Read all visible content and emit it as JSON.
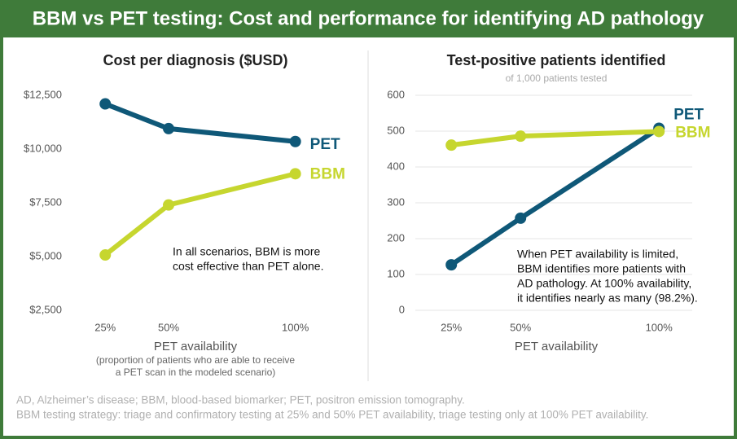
{
  "title": "BBM vs PET testing: Cost and performance for identifying AD pathology",
  "footnotes": [
    "AD, Alzheimer’s disease; BBM, blood-based biomarker; PET, positron emission tomography.",
    "BBM testing strategy: triage and confirmatory testing at 25% and 50% PET availability, triage testing only at 100% PET availability."
  ],
  "chart_data": [
    {
      "type": "line",
      "title": "Cost per diagnosis ($USD)",
      "xlabel": "PET availability",
      "xlabel_note": [
        "(proportion of patients who are able to receive",
        "a PET scan in the modeled scenario)"
      ],
      "x": [
        25,
        50,
        100
      ],
      "xlim": [
        14,
        112
      ],
      "xticks": [
        {
          "value": 25,
          "label": "25%"
        },
        {
          "value": 50,
          "label": "50%"
        },
        {
          "value": 100,
          "label": "100%"
        }
      ],
      "ylim": [
        2500,
        12500
      ],
      "yticks": [
        {
          "value": 2500,
          "label": "$2,500"
        },
        {
          "value": 5000,
          "label": "$5,000"
        },
        {
          "value": 7500,
          "label": "$7,500"
        },
        {
          "value": 10000,
          "label": "$10,000"
        },
        {
          "value": 12500,
          "label": "$12,500"
        }
      ],
      "grid": false,
      "series": [
        {
          "name": "PET",
          "color": "#0f5878",
          "values": [
            12100,
            10950,
            10350
          ]
        },
        {
          "name": "BBM",
          "color": "#c6d62f",
          "values": [
            5075,
            7400,
            8850
          ]
        }
      ],
      "annotation": [
        "In all scenarios, BBM is more",
        "cost effective than PET alone."
      ]
    },
    {
      "type": "line",
      "title": "Test-positive patients identified",
      "subtitle": "of 1,000 patients tested",
      "xlabel": "PET availability",
      "x": [
        25,
        50,
        100
      ],
      "xlim": [
        12,
        112
      ],
      "xticks": [
        {
          "value": 25,
          "label": "25%"
        },
        {
          "value": 50,
          "label": "50%"
        },
        {
          "value": 100,
          "label": "100%"
        }
      ],
      "ylim": [
        0,
        600
      ],
      "yticks": [
        0,
        100,
        200,
        300,
        400,
        500,
        600
      ],
      "grid": true,
      "series": [
        {
          "name": "PET",
          "color": "#0f5878",
          "values": [
            127,
            257,
            508
          ]
        },
        {
          "name": "BBM",
          "color": "#c6d62f",
          "values": [
            461,
            486,
            499
          ]
        }
      ],
      "annotation": [
        "When PET availability is limited,",
        "BBM identifies more patients with",
        "AD pathology. At 100% availability,",
        "it identifies nearly as many (98.2%)."
      ]
    }
  ]
}
